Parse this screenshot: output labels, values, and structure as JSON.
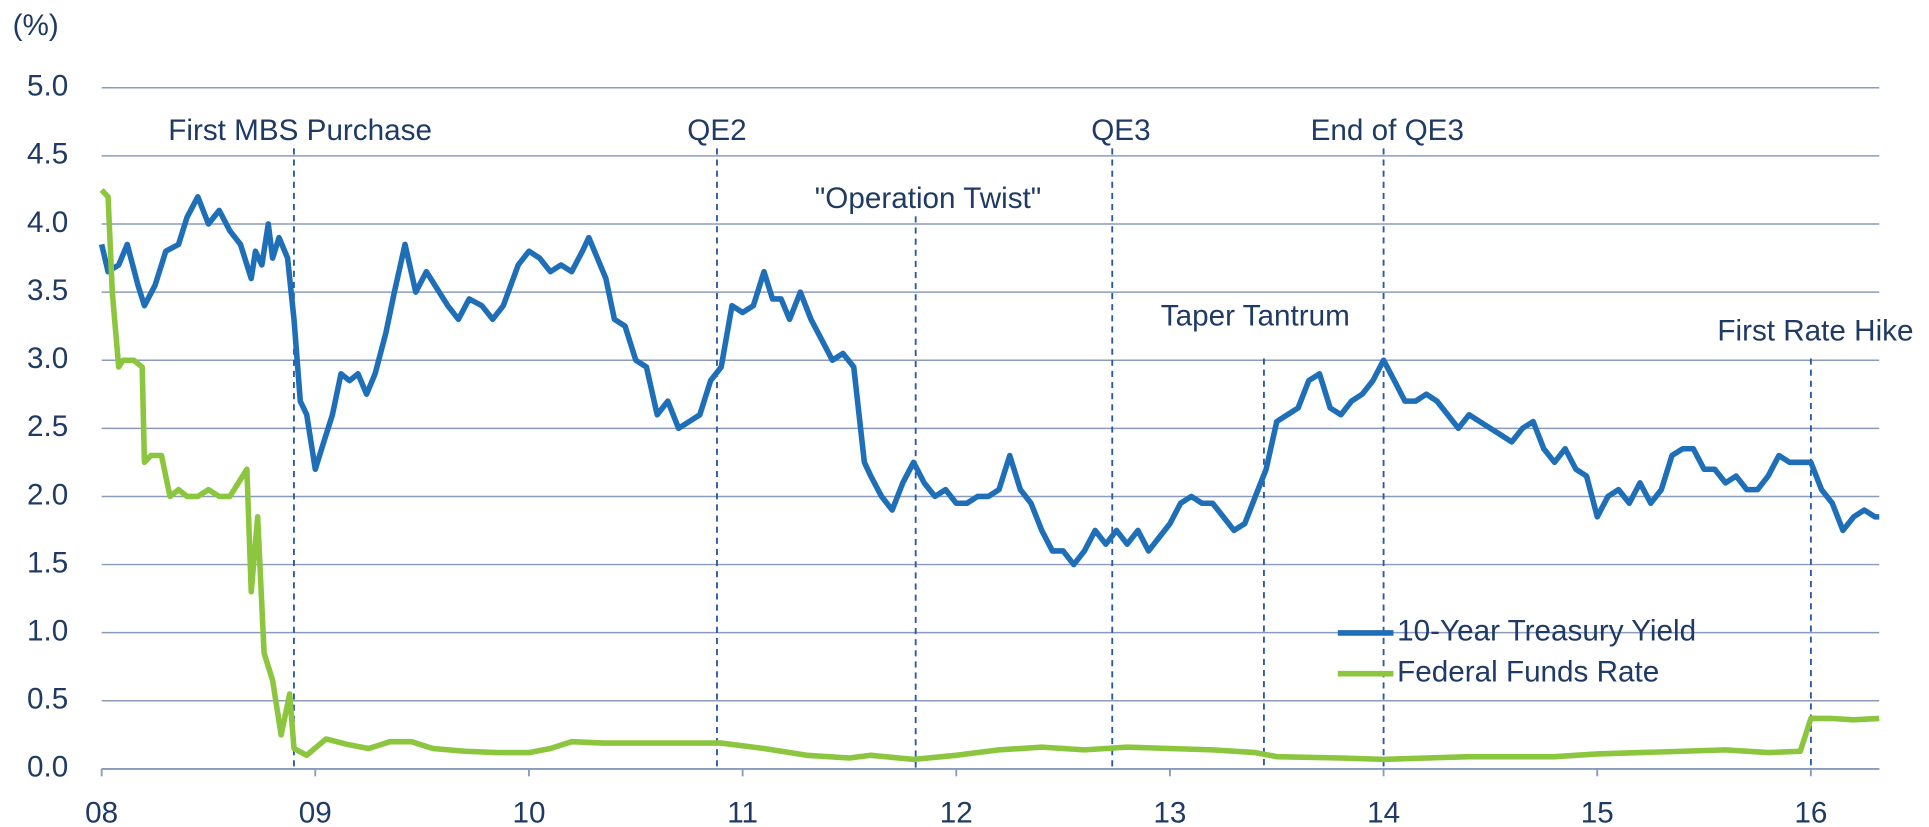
{
  "chart_data": {
    "type": "line",
    "ylabel": "(%)",
    "xlim": [
      8,
      16.32
    ],
    "xticks": [
      {
        "value": 8,
        "label": "08"
      },
      {
        "value": 9,
        "label": "09"
      },
      {
        "value": 10,
        "label": "10"
      },
      {
        "value": 11,
        "label": "11"
      },
      {
        "value": 12,
        "label": "12"
      },
      {
        "value": 13,
        "label": "13"
      },
      {
        "value": 14,
        "label": "14"
      },
      {
        "value": 15,
        "label": "15"
      },
      {
        "value": 16,
        "label": "16"
      }
    ],
    "ylim": [
      0,
      5
    ],
    "yticks": [
      {
        "value": 0,
        "label": "0.0"
      },
      {
        "value": 0.5,
        "label": "0.5"
      },
      {
        "value": 1,
        "label": "1.0"
      },
      {
        "value": 1.5,
        "label": "1.5"
      },
      {
        "value": 2,
        "label": "2.0"
      },
      {
        "value": 2.5,
        "label": "2.5"
      },
      {
        "value": 3,
        "label": "3.0"
      },
      {
        "value": 3.5,
        "label": "3.5"
      },
      {
        "value": 4,
        "label": "4.0"
      },
      {
        "value": 4.5,
        "label": "4.5"
      },
      {
        "value": 5,
        "label": "5.0"
      }
    ],
    "grid": true,
    "legend": "lower right",
    "annotations": [
      {
        "text": "First MBS Purchase",
        "x": 8.9
      },
      {
        "text": "QE2",
        "x": 10.88
      },
      {
        "text": "\"Operation Twist\"",
        "x": 11.81
      },
      {
        "text": "QE3",
        "x": 12.73
      },
      {
        "text": "Taper Tantrum",
        "x": 13.44
      },
      {
        "text": "End of QE3",
        "x": 14.0
      },
      {
        "text": "First Rate Hike",
        "x": 16.0
      }
    ],
    "series": [
      {
        "name": "10-Year Treasury Yield",
        "color": "#1f6fb8",
        "x": [
          8.0,
          8.03,
          8.08,
          8.12,
          8.17,
          8.2,
          8.25,
          8.3,
          8.36,
          8.4,
          8.45,
          8.5,
          8.55,
          8.6,
          8.65,
          8.7,
          8.72,
          8.75,
          8.78,
          8.8,
          8.83,
          8.87,
          8.9,
          8.93,
          8.96,
          9.0,
          9.04,
          9.08,
          9.12,
          9.16,
          9.2,
          9.24,
          9.28,
          9.33,
          9.37,
          9.42,
          9.47,
          9.52,
          9.58,
          9.62,
          9.67,
          9.72,
          9.78,
          9.83,
          9.88,
          9.95,
          10.0,
          10.05,
          10.1,
          10.15,
          10.2,
          10.25,
          10.28,
          10.32,
          10.36,
          10.4,
          10.45,
          10.5,
          10.55,
          10.6,
          10.65,
          10.7,
          10.75,
          10.8,
          10.85,
          10.9,
          10.95,
          11.0,
          11.05,
          11.1,
          11.14,
          11.18,
          11.22,
          11.27,
          11.32,
          11.37,
          11.42,
          11.47,
          11.52,
          11.57,
          11.6,
          11.65,
          11.7,
          11.75,
          11.8,
          11.85,
          11.9,
          11.95,
          12.0,
          12.05,
          12.1,
          12.15,
          12.2,
          12.25,
          12.3,
          12.35,
          12.4,
          12.45,
          12.5,
          12.55,
          12.6,
          12.65,
          12.7,
          12.75,
          12.8,
          12.85,
          12.9,
          12.95,
          13.0,
          13.05,
          13.1,
          13.15,
          13.2,
          13.25,
          13.3,
          13.35,
          13.4,
          13.45,
          13.5,
          13.55,
          13.6,
          13.65,
          13.7,
          13.75,
          13.8,
          13.85,
          13.9,
          13.95,
          14.0,
          14.05,
          14.1,
          14.15,
          14.2,
          14.25,
          14.3,
          14.35,
          14.4,
          14.45,
          14.5,
          14.55,
          14.6,
          14.65,
          14.7,
          14.75,
          14.8,
          14.85,
          14.9,
          14.95,
          15.0,
          15.05,
          15.1,
          15.15,
          15.2,
          15.25,
          15.3,
          15.35,
          15.4,
          15.45,
          15.5,
          15.55,
          15.6,
          15.65,
          15.7,
          15.75,
          15.8,
          15.85,
          15.9,
          15.95,
          16.0,
          16.05,
          16.1,
          16.15,
          16.2,
          16.25,
          16.3,
          16.32
        ],
        "values": [
          3.85,
          3.65,
          3.7,
          3.85,
          3.55,
          3.4,
          3.55,
          3.8,
          3.85,
          4.05,
          4.2,
          4.0,
          4.1,
          3.95,
          3.85,
          3.6,
          3.8,
          3.7,
          4.0,
          3.75,
          3.9,
          3.75,
          3.3,
          2.7,
          2.6,
          2.2,
          2.4,
          2.6,
          2.9,
          2.85,
          2.9,
          2.75,
          2.9,
          3.2,
          3.5,
          3.85,
          3.5,
          3.65,
          3.5,
          3.4,
          3.3,
          3.45,
          3.4,
          3.3,
          3.4,
          3.7,
          3.8,
          3.75,
          3.65,
          3.7,
          3.65,
          3.8,
          3.9,
          3.75,
          3.6,
          3.3,
          3.25,
          3.0,
          2.95,
          2.6,
          2.7,
          2.5,
          2.55,
          2.6,
          2.85,
          2.95,
          3.4,
          3.35,
          3.4,
          3.65,
          3.45,
          3.45,
          3.3,
          3.5,
          3.3,
          3.15,
          3.0,
          3.05,
          2.95,
          2.25,
          2.15,
          2.0,
          1.9,
          2.1,
          2.25,
          2.1,
          2.0,
          2.05,
          1.95,
          1.95,
          2.0,
          2.0,
          2.05,
          2.3,
          2.05,
          1.95,
          1.75,
          1.6,
          1.6,
          1.5,
          1.6,
          1.75,
          1.65,
          1.75,
          1.65,
          1.75,
          1.6,
          1.7,
          1.8,
          1.95,
          2.0,
          1.95,
          1.95,
          1.85,
          1.75,
          1.8,
          2.0,
          2.2,
          2.55,
          2.6,
          2.65,
          2.85,
          2.9,
          2.65,
          2.6,
          2.7,
          2.75,
          2.85,
          3.0,
          2.85,
          2.7,
          2.7,
          2.75,
          2.7,
          2.6,
          2.5,
          2.6,
          2.55,
          2.5,
          2.45,
          2.4,
          2.5,
          2.55,
          2.35,
          2.25,
          2.35,
          2.2,
          2.15,
          1.85,
          2.0,
          2.05,
          1.95,
          2.1,
          1.95,
          2.05,
          2.3,
          2.35,
          2.35,
          2.2,
          2.2,
          2.1,
          2.15,
          2.05,
          2.05,
          2.15,
          2.3,
          2.25,
          2.25,
          2.25,
          2.05,
          1.95,
          1.75,
          1.85,
          1.9,
          1.85,
          1.85
        ]
      },
      {
        "name": "Federal Funds Rate",
        "color": "#8cc63f",
        "x": [
          8.0,
          8.03,
          8.05,
          8.08,
          8.1,
          8.15,
          8.19,
          8.2,
          8.23,
          8.28,
          8.32,
          8.36,
          8.4,
          8.45,
          8.5,
          8.55,
          8.6,
          8.68,
          8.7,
          8.73,
          8.76,
          8.8,
          8.84,
          8.88,
          8.9,
          8.96,
          9.05,
          9.15,
          9.25,
          9.35,
          9.45,
          9.55,
          9.7,
          9.85,
          10.0,
          10.1,
          10.2,
          10.35,
          10.5,
          10.7,
          10.9,
          11.1,
          11.3,
          11.5,
          11.6,
          11.8,
          12.0,
          12.2,
          12.4,
          12.6,
          12.8,
          13.0,
          13.2,
          13.4,
          13.5,
          13.8,
          14.0,
          14.2,
          14.4,
          14.6,
          14.8,
          15.0,
          15.2,
          15.4,
          15.6,
          15.8,
          15.95,
          16.0,
          16.1,
          16.2,
          16.32
        ],
        "values": [
          4.25,
          4.2,
          3.5,
          2.95,
          3.0,
          3.0,
          2.95,
          2.25,
          2.3,
          2.3,
          2.0,
          2.05,
          2.0,
          2.0,
          2.05,
          2.0,
          2.0,
          2.2,
          1.3,
          1.85,
          0.85,
          0.65,
          0.25,
          0.55,
          0.15,
          0.1,
          0.22,
          0.18,
          0.15,
          0.2,
          0.2,
          0.15,
          0.13,
          0.12,
          0.12,
          0.15,
          0.2,
          0.19,
          0.19,
          0.19,
          0.19,
          0.15,
          0.1,
          0.08,
          0.1,
          0.07,
          0.1,
          0.14,
          0.16,
          0.14,
          0.16,
          0.15,
          0.14,
          0.12,
          0.09,
          0.08,
          0.07,
          0.08,
          0.09,
          0.09,
          0.09,
          0.11,
          0.12,
          0.13,
          0.14,
          0.12,
          0.13,
          0.37,
          0.37,
          0.36,
          0.37
        ]
      }
    ]
  }
}
